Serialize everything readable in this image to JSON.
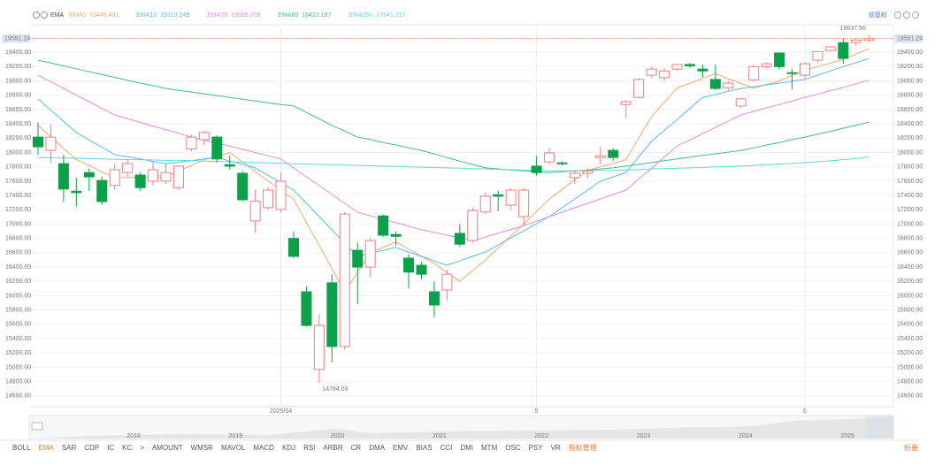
{
  "chart_data": {
    "type": "candlestick",
    "indicator": "EMA",
    "adjust": "前复权",
    "up_color": "#ee7e80",
    "down_color": "#0aa14a",
    "grid": true,
    "categories": [
      null,
      null,
      null,
      null,
      null,
      null,
      null,
      null,
      null,
      null,
      null,
      null,
      null,
      null,
      null,
      null,
      null,
      null,
      null,
      "2025/04",
      null,
      null,
      null,
      null,
      null,
      null,
      null,
      null,
      null,
      null,
      null,
      null,
      null,
      null,
      null,
      null,
      null,
      null,
      null,
      "5",
      null,
      null,
      null,
      null,
      null,
      null,
      null,
      null,
      null,
      null,
      null,
      null,
      null,
      null,
      null,
      null,
      null,
      null,
      null,
      null,
      "6",
      null,
      null,
      null,
      null,
      null
    ],
    "candles": {
      "open": [
        18215,
        18030,
        17845,
        17460,
        17720,
        17610,
        17540,
        17720,
        17685,
        17600,
        17600,
        17510,
        18050,
        18180,
        18215,
        17830,
        17710,
        17045,
        17230,
        17205,
        16800,
        16055,
        14970,
        16180,
        15290,
        16635,
        16400,
        17115,
        16855,
        16525,
        16425,
        16055,
        16080,
        16870,
        16770,
        17170,
        17410,
        17265,
        17105,
        17810,
        17870,
        17855,
        17650,
        17710,
        17930,
        18030,
        18670,
        18770,
        19080,
        19045,
        19165,
        19230,
        19165,
        19020,
        18905,
        18650,
        19015,
        19200,
        19390,
        19115,
        19080,
        19290,
        19425,
        19535,
        19535,
        19570
      ],
      "high": [
        18420,
        18400,
        17970,
        17650,
        17780,
        17660,
        17850,
        17910,
        17720,
        17870,
        17850,
        17830,
        18250,
        18300,
        18240,
        17960,
        17740,
        17480,
        17520,
        17720,
        16900,
        16130,
        15740,
        16300,
        17170,
        16740,
        16800,
        17130,
        16900,
        16580,
        16470,
        16200,
        16360,
        17000,
        17230,
        17440,
        17470,
        17500,
        17500,
        17950,
        18060,
        17880,
        17760,
        17780,
        18080,
        18060,
        18730,
        19040,
        19200,
        19180,
        19240,
        19250,
        19230,
        19230,
        19000,
        18760,
        19220,
        19260,
        19400,
        19170,
        19260,
        19420,
        19490,
        19600,
        19590,
        19637.56
      ],
      "low": [
        17970,
        17850,
        17310,
        17250,
        17460,
        17270,
        17480,
        17660,
        17460,
        17540,
        17560,
        17480,
        18020,
        18100,
        17860,
        17760,
        17320,
        16880,
        17200,
        17160,
        16530,
        15570,
        14784.03,
        15070,
        15250,
        15880,
        16260,
        16820,
        16700,
        16100,
        16230,
        15700,
        15940,
        16680,
        16740,
        17140,
        17180,
        17200,
        16980,
        17680,
        17840,
        17820,
        17560,
        17640,
        17840,
        17880,
        18480,
        18760,
        19040,
        19000,
        19140,
        19180,
        19050,
        18870,
        18860,
        18620,
        18990,
        19170,
        19160,
        18880,
        19040,
        19260,
        19410,
        19240,
        19490,
        19540
      ],
      "close": [
        18080,
        18215,
        17490,
        17440,
        17660,
        17315,
        17760,
        17845,
        17510,
        17760,
        17720,
        17810,
        18215,
        18280,
        17910,
        17810,
        17340,
        17320,
        17475,
        17600,
        16550,
        15585,
        15585,
        15290,
        17140,
        16400,
        16770,
        16845,
        16830,
        16330,
        16300,
        15870,
        16300,
        16720,
        17190,
        17390,
        17390,
        17475,
        17475,
        17720,
        17995,
        17845,
        17710,
        17745,
        17955,
        17930,
        18710,
        19020,
        19165,
        19140,
        19230,
        19210,
        19140,
        18895,
        18970,
        18750,
        19200,
        19240,
        19200,
        19105,
        19240,
        19410,
        19475,
        19315,
        19570,
        19591.24
      ]
    },
    "series": [
      {
        "name": "EMA5",
        "color": "#f5a86b",
        "values": [
          18380,
          18220,
          18060,
          17900,
          17820,
          17730,
          17650,
          17650,
          17655,
          17660,
          17660,
          17740,
          17820,
          17900,
          17950,
          18000,
          17870,
          17735,
          17600,
          17475,
          17350,
          17025,
          16700,
          16380,
          16055,
          16330,
          16600,
          16675,
          16750,
          16650,
          16550,
          16450,
          16325,
          16200,
          16350,
          16500,
          16665,
          16835,
          17000,
          17175,
          17350,
          17485,
          17620,
          17750,
          17800,
          17850,
          17900,
          18200,
          18500,
          18700,
          18900,
          18965,
          19035,
          19100,
          19030,
          18965,
          18900,
          18950,
          19000,
          19075,
          19150,
          19200,
          19250,
          19300,
          19375,
          19449.491
        ]
      },
      {
        "name": "EMA10",
        "color": "#5bbbe8",
        "values": [
          18750,
          18590,
          18435,
          18280,
          18175,
          18075,
          17970,
          17940,
          17910,
          17875,
          17845,
          17865,
          17885,
          17910,
          17930,
          17880,
          17835,
          17785,
          17680,
          17580,
          17475,
          17290,
          17105,
          16920,
          16735,
          16550,
          16590,
          16635,
          16675,
          16610,
          16550,
          16485,
          16425,
          16485,
          16550,
          16610,
          16710,
          16810,
          16905,
          17005,
          17105,
          17230,
          17355,
          17475,
          17600,
          17660,
          17720,
          17940,
          18155,
          18310,
          18460,
          18615,
          18770,
          18810,
          18855,
          18895,
          18920,
          18945,
          18970,
          18995,
          19020,
          19080,
          19140,
          19200,
          19255,
          19313.249
        ]
      },
      {
        "name": "EMA20",
        "color": "#e88ce0",
        "values": [
          19080,
          18990,
          18895,
          18800,
          18710,
          18615,
          18525,
          18475,
          18420,
          18370,
          18320,
          18270,
          18215,
          18175,
          18130,
          18090,
          18045,
          18000,
          17955,
          17910,
          17785,
          17660,
          17540,
          17415,
          17290,
          17165,
          17115,
          17065,
          17020,
          16970,
          16920,
          16885,
          16845,
          16810,
          16770,
          16820,
          16875,
          16925,
          16980,
          17040,
          17105,
          17165,
          17230,
          17290,
          17355,
          17415,
          17475,
          17630,
          17780,
          17935,
          18090,
          18175,
          18265,
          18350,
          18440,
          18525,
          18575,
          18625,
          18670,
          18720,
          18770,
          18815,
          18865,
          18910,
          18960,
          19008.209
        ]
      },
      {
        "name": "EMA60",
        "color": "#4cbb82",
        "values": [
          19290,
          19250,
          19210,
          19170,
          19130,
          19090,
          19050,
          19010,
          18970,
          18935,
          18895,
          18870,
          18845,
          18820,
          18795,
          18770,
          18745,
          18720,
          18695,
          18670,
          18650,
          18560,
          18470,
          18380,
          18300,
          18215,
          18180,
          18140,
          18105,
          18065,
          18030,
          17980,
          17930,
          17880,
          17835,
          17785,
          17770,
          17755,
          17745,
          17730,
          17720,
          17730,
          17745,
          17755,
          17770,
          17785,
          17810,
          17835,
          17860,
          17885,
          17910,
          17935,
          17960,
          17980,
          18005,
          18030,
          18065,
          18105,
          18140,
          18180,
          18215,
          18255,
          18295,
          18340,
          18380,
          18423.187
        ]
      },
      {
        "name": "EMA250",
        "color": "#5fd8dc",
        "values": [
          17930,
          17930,
          17925,
          17920,
          17915,
          17910,
          17905,
          17900,
          17900,
          17895,
          17890,
          17890,
          17885,
          17880,
          17875,
          17870,
          17865,
          17860,
          17855,
          17850,
          17845,
          17840,
          17835,
          17830,
          17825,
          17820,
          17815,
          17810,
          17805,
          17800,
          17795,
          17790,
          17785,
          17780,
          17775,
          17770,
          17765,
          17760,
          17755,
          17750,
          17745,
          17745,
          17745,
          17745,
          17750,
          17750,
          17755,
          17760,
          17770,
          17775,
          17780,
          17785,
          17790,
          17800,
          17805,
          17810,
          17820,
          17830,
          17840,
          17850,
          17860,
          17870,
          17885,
          17900,
          17915,
          17941.217
        ]
      }
    ],
    "ylim": [
      14450,
      19760
    ],
    "yticks": [
      {
        "value": 14600,
        "label": "14600.00"
      },
      {
        "value": 14800,
        "label": "14800.00"
      },
      {
        "value": 15000,
        "label": "15000.00"
      },
      {
        "value": 15200,
        "label": "15200.00"
      },
      {
        "value": 15400,
        "label": "15400.00"
      },
      {
        "value": 15600,
        "label": "15600.00"
      },
      {
        "value": 15800,
        "label": "15800.00"
      },
      {
        "value": 16000,
        "label": "16000.00"
      },
      {
        "value": 16200,
        "label": "16200.00"
      },
      {
        "value": 16400,
        "label": "16400.00"
      },
      {
        "value": 16600,
        "label": "16600.00"
      },
      {
        "value": 16800,
        "label": "16800.00"
      },
      {
        "value": 17000,
        "label": "17000.00"
      },
      {
        "value": 17200,
        "label": "17200.00"
      },
      {
        "value": 17400,
        "label": "17400.00"
      },
      {
        "value": 17600,
        "label": "17600.00"
      },
      {
        "value": 17800,
        "label": "17800.00"
      },
      {
        "value": 18000,
        "label": "18000.00"
      },
      {
        "value": 18200,
        "label": "18200.00"
      },
      {
        "value": 18400,
        "label": "18400.00"
      },
      {
        "value": 18600,
        "label": "18600.00"
      },
      {
        "value": 18800,
        "label": "18800.00"
      },
      {
        "value": 19000,
        "label": "19000.00"
      },
      {
        "value": 19200,
        "label": "19200.00"
      },
      {
        "value": 19400,
        "label": "19400.00"
      }
    ],
    "navigator_years": [
      "2018",
      "2019",
      "2020",
      "2021",
      "2022",
      "2023",
      "2024",
      "2025"
    ],
    "tabs": [
      "BOLL",
      "EMA",
      "SAR",
      "CDP",
      "IC",
      "KC",
      ">",
      "AMOUNT",
      "WMSR",
      "MAVOL",
      "MACD",
      "KDJ",
      "RSI",
      "ARBR",
      "CR",
      "DMA",
      "EMV",
      "BIAS",
      "CCI",
      "DMI",
      "MTM",
      "OSC",
      "PSY",
      "VR",
      "指标管理"
    ],
    "active_tab": 1,
    "collapse": "折叠"
  }
}
